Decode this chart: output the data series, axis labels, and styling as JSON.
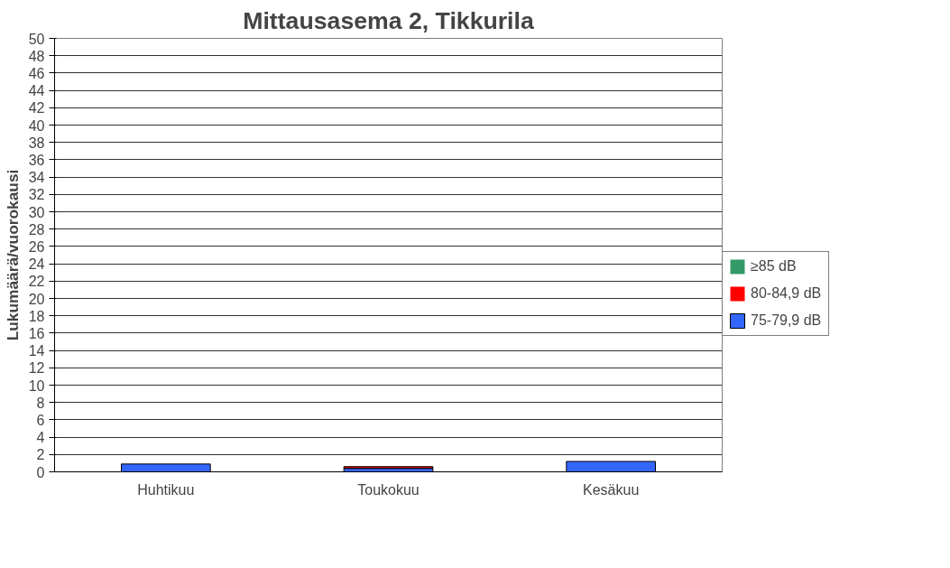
{
  "chart_data": {
    "type": "bar",
    "title": "Mittausasema 2, Tikkurila",
    "ylabel": "Lukumäärä/vuorokausi",
    "categories": [
      "Huhtikuu",
      "Toukokuu",
      "Kesäkuu"
    ],
    "stacked": true,
    "series": [
      {
        "name": "75-79,9 dB",
        "color": "#3366ff",
        "values": [
          0.9,
          0.4,
          1.2
        ]
      },
      {
        "name": "80-84,9 dB",
        "color": "#ff0000",
        "values": [
          0,
          0.2,
          0
        ]
      },
      {
        "name": "≥85 dB",
        "color": "#339966",
        "values": [
          0,
          0,
          0
        ]
      }
    ],
    "ylim": [
      0,
      50
    ],
    "yticks": [
      0,
      2,
      4,
      6,
      8,
      10,
      12,
      14,
      16,
      18,
      20,
      22,
      24,
      26,
      28,
      30,
      32,
      34,
      36,
      38,
      40,
      42,
      44,
      46,
      48,
      50
    ],
    "grid": "y",
    "legend": "right"
  }
}
